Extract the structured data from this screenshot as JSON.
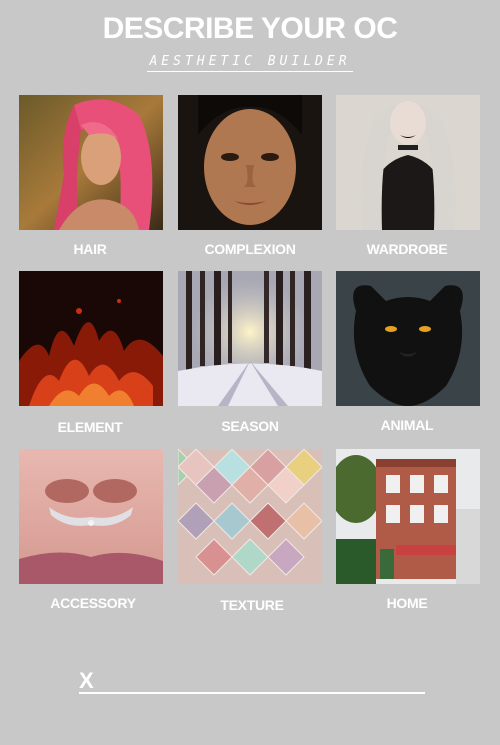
{
  "header": {
    "title": "DESCRIBE YOUR OC",
    "subtitle": "AESTHETIC BUILDER"
  },
  "grid": {
    "labels": [
      "HAIR",
      "COMPLEXION",
      "WARDROBE",
      "ELEMENT",
      "SEASON",
      "ANIMAL",
      "ACCESSORY",
      "TEXTURE",
      "HOME"
    ]
  },
  "footer": {
    "signoff": "X"
  },
  "colors": {
    "background": "#c8c8c8",
    "text": "#ffffff",
    "hair_pink": "#e8507a",
    "fire": "#d8401a",
    "panther": "#111111"
  },
  "icons": [
    "hair-photo",
    "complexion-photo",
    "wardrobe-photo",
    "element-photo",
    "season-photo",
    "animal-photo",
    "accessory-photo",
    "texture-photo",
    "home-photo"
  ]
}
